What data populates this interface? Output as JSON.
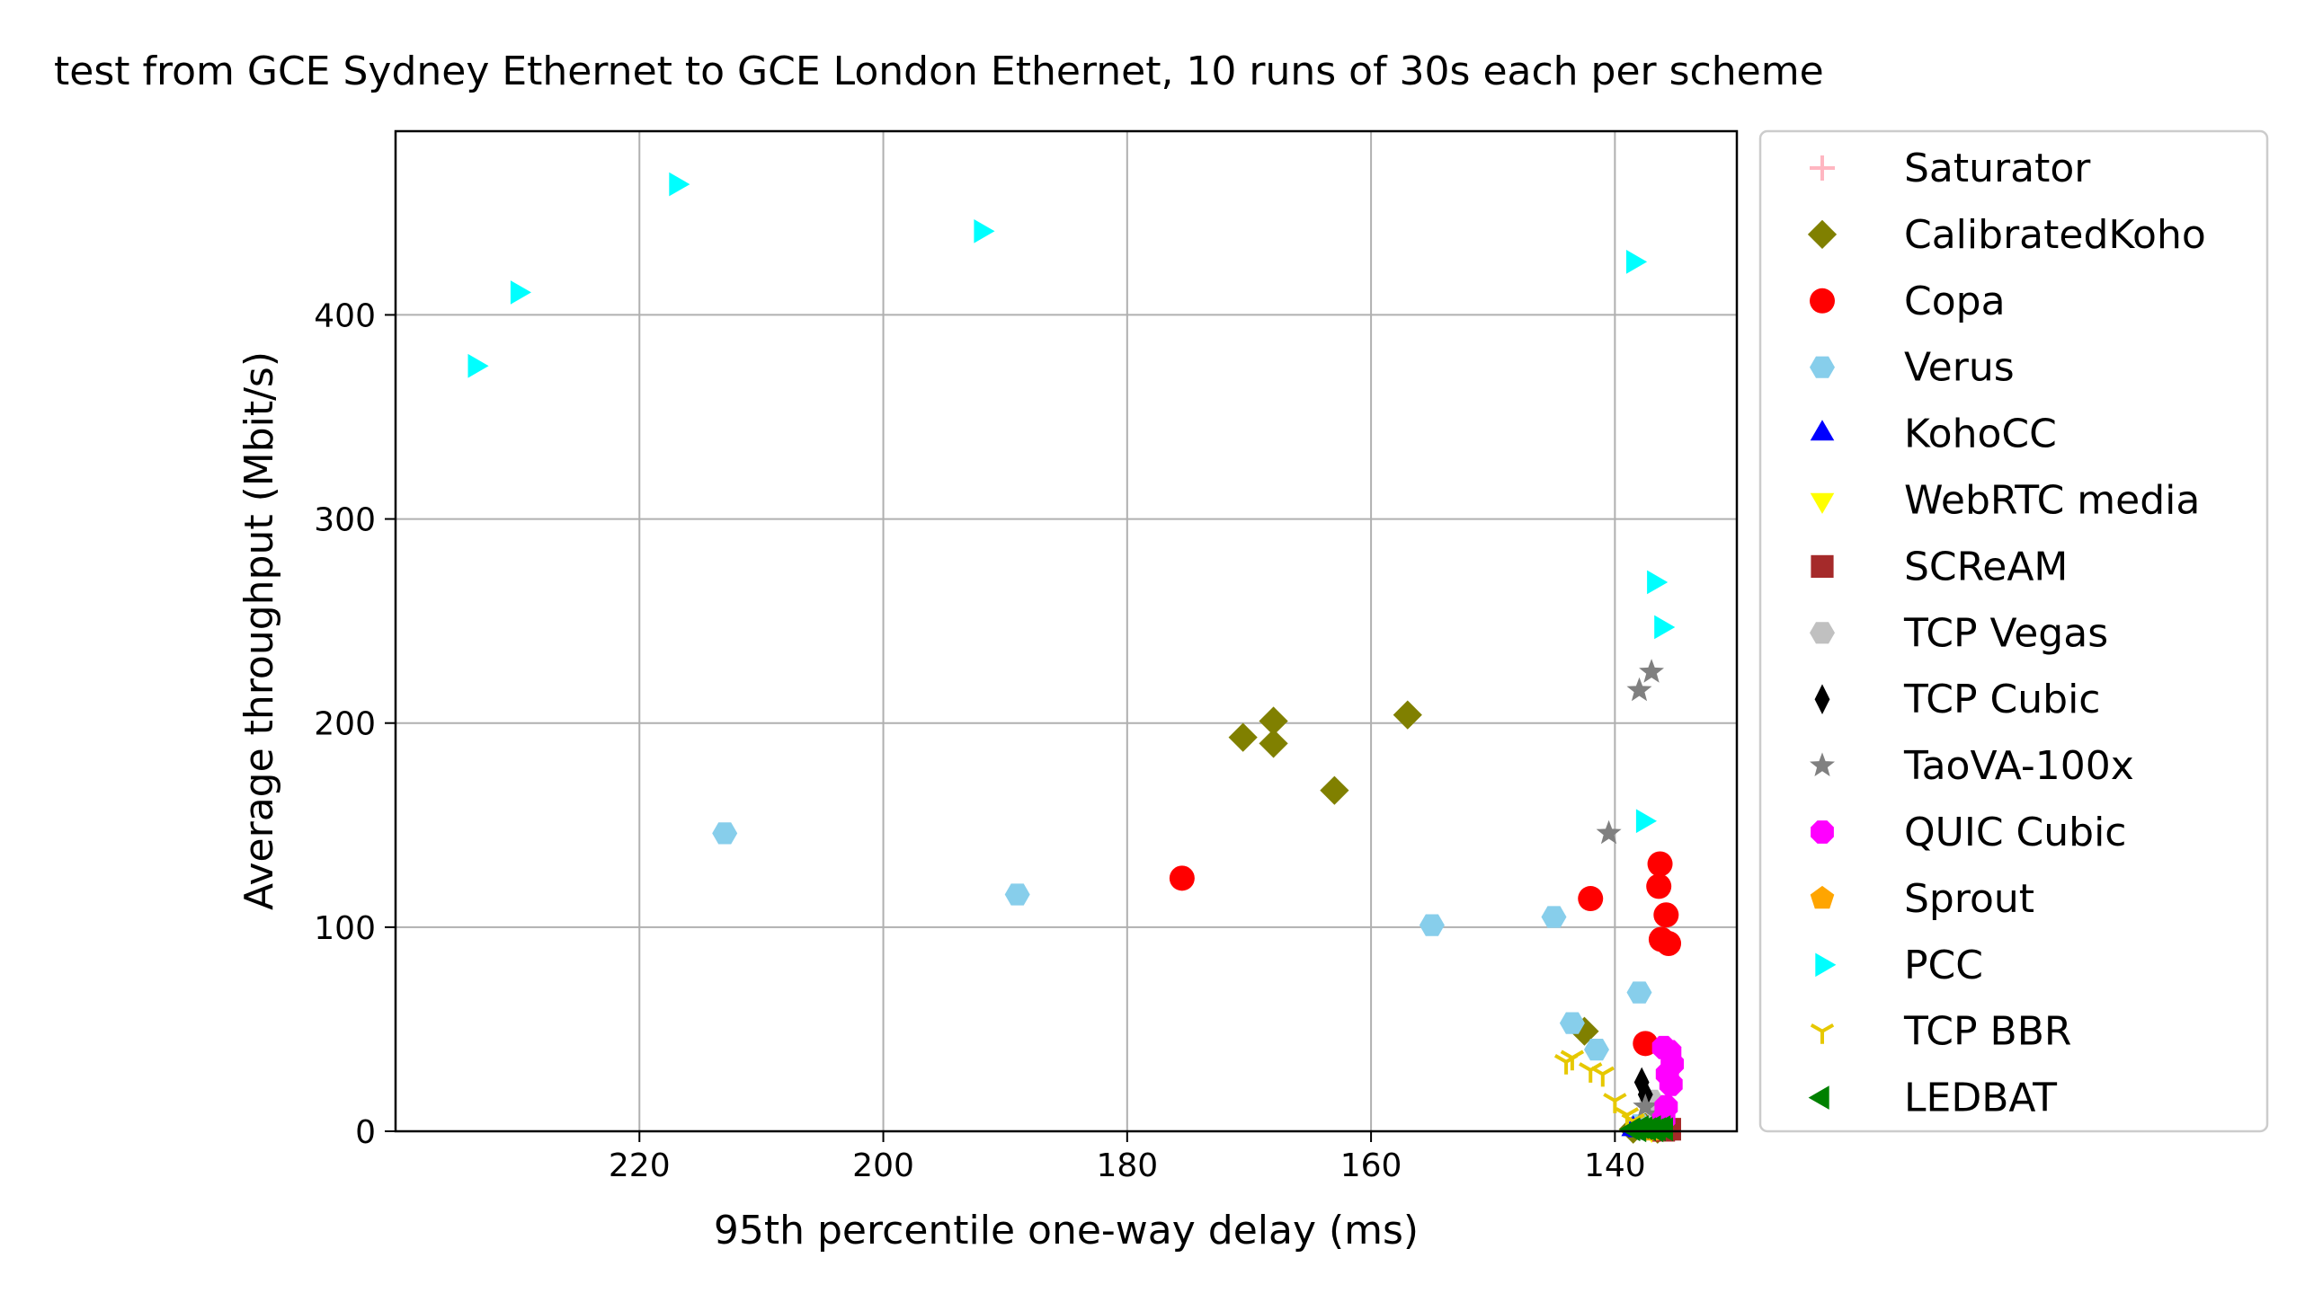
{
  "chart_data": {
    "type": "scatter",
    "title": "test from GCE Sydney Ethernet to GCE London Ethernet, 10 runs of 30s each per scheme",
    "xlabel": "95th percentile one-way delay (ms)",
    "ylabel": "Average throughput (Mbit/s)",
    "xlim": [
      240,
      130
    ],
    "ylim": [
      0,
      490
    ],
    "x_inverted": true,
    "grid": true,
    "legend_position": "outside-right",
    "xticks": [
      220,
      200,
      180,
      160,
      140
    ],
    "yticks": [
      0,
      100,
      200,
      300,
      400
    ],
    "series": [
      {
        "name": "Saturator",
        "marker": "plus",
        "color": "#ffb6c1",
        "points": [
          [
            137.2,
            2
          ],
          [
            136.8,
            1
          ]
        ]
      },
      {
        "name": "CalibratedKoho",
        "marker": "diamond",
        "color": "#808000",
        "points": [
          [
            157,
            204
          ],
          [
            168,
            201
          ],
          [
            168,
            190
          ],
          [
            170.5,
            193
          ],
          [
            163,
            167
          ],
          [
            142.5,
            49
          ],
          [
            138.5,
            1
          ],
          [
            137.5,
            2
          ],
          [
            136.5,
            1
          ],
          [
            137,
            3
          ]
        ]
      },
      {
        "name": "Copa",
        "marker": "circle",
        "color": "#ff0000",
        "points": [
          [
            175.5,
            124
          ],
          [
            142,
            114
          ],
          [
            136.3,
            131
          ],
          [
            136.4,
            120
          ],
          [
            135.8,
            106
          ],
          [
            136.2,
            94
          ],
          [
            135.6,
            92
          ],
          [
            137.5,
            43
          ],
          [
            137,
            2
          ],
          [
            136.5,
            1
          ]
        ]
      },
      {
        "name": "Verus",
        "marker": "hexagon",
        "color": "#87ceeb",
        "points": [
          [
            213,
            146
          ],
          [
            189,
            116
          ],
          [
            155,
            101
          ],
          [
            145,
            105
          ],
          [
            138,
            68
          ],
          [
            143.5,
            53
          ],
          [
            141.5,
            40
          ],
          [
            138,
            3
          ],
          [
            137.5,
            1
          ],
          [
            137,
            2
          ]
        ]
      },
      {
        "name": "KohoCC",
        "marker": "triangle-up",
        "color": "#0000ff",
        "points": [
          [
            138.5,
            1
          ],
          [
            138,
            0.5
          ]
        ]
      },
      {
        "name": "WebRTC media",
        "marker": "triangle-down",
        "color": "#ffff00",
        "points": [
          [
            137.5,
            2
          ],
          [
            137,
            1
          ]
        ]
      },
      {
        "name": "SCReAM",
        "marker": "square",
        "color": "#a52a2a",
        "points": [
          [
            135.5,
            1
          ],
          [
            136,
            0.5
          ]
        ]
      },
      {
        "name": "TCP Vegas",
        "marker": "hexagon",
        "color": "#c0c0c0",
        "points": [
          [
            137,
            15
          ],
          [
            136.5,
            10
          ]
        ]
      },
      {
        "name": "TCP Cubic",
        "marker": "thin-diamond",
        "color": "#000000",
        "points": [
          [
            137.8,
            24
          ],
          [
            137.5,
            18
          ]
        ]
      },
      {
        "name": "TaoVA-100x",
        "marker": "star",
        "color": "#808080",
        "points": [
          [
            137,
            225
          ],
          [
            138,
            216
          ],
          [
            140.5,
            146
          ],
          [
            137.5,
            12
          ],
          [
            136.5,
            8
          ]
        ]
      },
      {
        "name": "QUIC Cubic",
        "marker": "octagon",
        "color": "#ff00ff",
        "points": [
          [
            136,
            41
          ],
          [
            135.5,
            39
          ],
          [
            135.3,
            33
          ],
          [
            135.7,
            28
          ],
          [
            135.4,
            23
          ],
          [
            135.8,
            12
          ],
          [
            136,
            6
          ]
        ]
      },
      {
        "name": "Sprout",
        "marker": "pentagon",
        "color": "#ffa500",
        "points": [
          [
            137.5,
            1
          ],
          [
            137,
            0.5
          ]
        ]
      },
      {
        "name": "PCC",
        "marker": "triangle-right",
        "color": "#00ffff",
        "points": [
          [
            233.5,
            375
          ],
          [
            230,
            411
          ],
          [
            217,
            464
          ],
          [
            192,
            441
          ],
          [
            138.5,
            426
          ],
          [
            136.8,
            269
          ],
          [
            136.2,
            247
          ],
          [
            137.7,
            152
          ]
        ]
      },
      {
        "name": "TCP BBR",
        "marker": "tri-down",
        "color": "#e6c800",
        "points": [
          [
            144,
            34
          ],
          [
            143.5,
            36
          ],
          [
            142,
            30
          ],
          [
            141,
            28
          ],
          [
            140,
            15
          ],
          [
            139,
            8
          ],
          [
            138.5,
            5
          ]
        ]
      },
      {
        "name": "LEDBAT",
        "marker": "triangle-left",
        "color": "#008000",
        "points": [
          [
            138.5,
            1
          ],
          [
            137.8,
            2
          ],
          [
            137.2,
            1
          ],
          [
            136.8,
            2
          ],
          [
            136.4,
            1
          ],
          [
            136,
            2
          ],
          [
            135.8,
            1
          ],
          [
            136.6,
            0.5
          ],
          [
            137.5,
            1.5
          ],
          [
            138,
            0.5
          ]
        ]
      }
    ]
  }
}
